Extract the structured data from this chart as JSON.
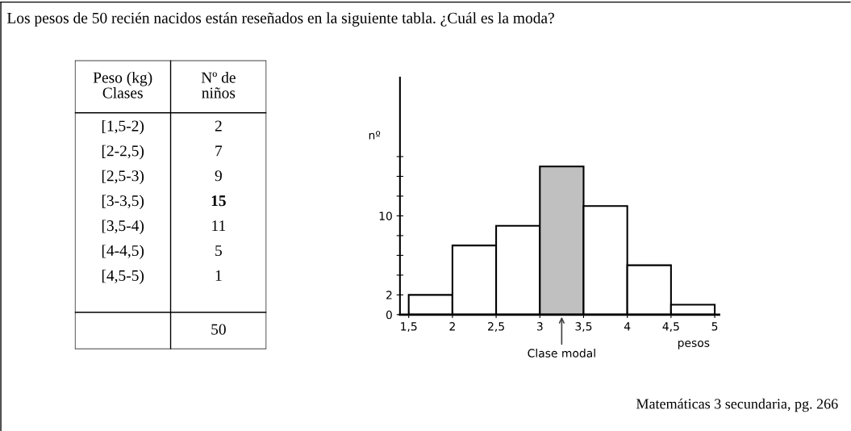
{
  "chart_data": [
    {
      "type": "other",
      "title": "Los pesos de 50 recién nacidos están reseñados en la siguiente tabla. ¿Cuál es la moda?",
      "annotations": [
        "Peso (kg)\nClases",
        "Nº de\nniños",
        "[1,5-2)",
        "2",
        "[2-2,5)",
        "7",
        "[2,5-3)",
        "9",
        "[3-3,5)",
        "15",
        "[3,5-4)",
        "11",
        "[4-4,5)",
        "5",
        "[4,5-5)",
        "1",
        "50"
      ]
    },
    {
      "type": "histogram",
      "bins": [
        1.5,
        2,
        2.5,
        3,
        3.5,
        4,
        4.5,
        5
      ],
      "values": [
        2,
        7,
        9,
        15,
        11,
        5,
        1
      ],
      "colors": [
        "#ffffff",
        "#ffffff",
        "#ffffff",
        "#c0c0c0",
        "#ffffff",
        "#ffffff",
        "#ffffff"
      ],
      "xlabel": "pesos",
      "ylabel": "nº",
      "xlim": [
        1.4,
        5.05
      ],
      "xticks": [
        {
          "value": 1.5,
          "label": "1,5"
        },
        2,
        {
          "value": 2.5,
          "label": "2,5"
        },
        3,
        {
          "value": 3.5,
          "label": "3,5"
        },
        4,
        {
          "value": 4.5,
          "label": "4,5"
        },
        5
      ],
      "ylim": [
        0,
        24
      ],
      "yticks": [
        0,
        2,
        {
          "value": 4,
          "label": null
        },
        {
          "value": 6,
          "label": null
        },
        {
          "value": 8,
          "label": null
        },
        10,
        {
          "value": 12,
          "label": null
        },
        {
          "value": 14,
          "label": null
        },
        {
          "value": 16,
          "label": null
        }
      ],
      "annotations": [
        {
          "text": "Clase modal",
          "x": 3.25,
          "y": 0
        },
        "Matemáticas 3 secundaria, pg. 266"
      ]
    }
  ]
}
